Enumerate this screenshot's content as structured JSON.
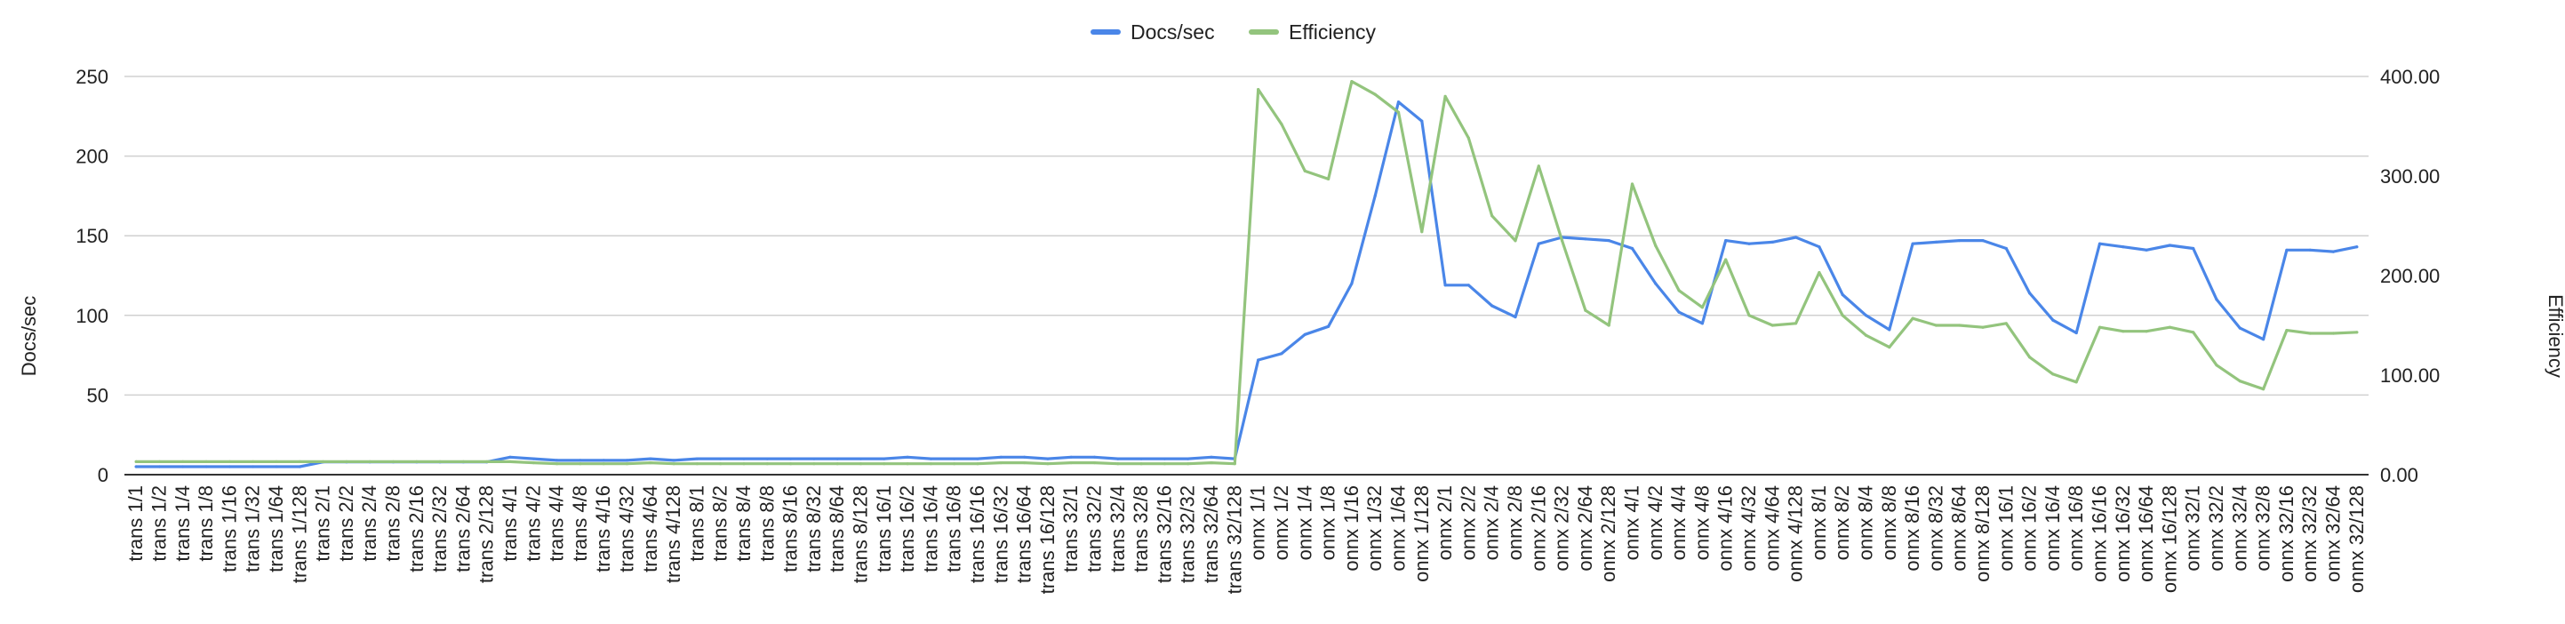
{
  "chart_data": {
    "type": "line",
    "title": "",
    "xlabel": "",
    "ylabel": "Docs/sec",
    "y2label": "Efficiency",
    "ylim": [
      0,
      250
    ],
    "y2lim": [
      0,
      400
    ],
    "yticks": [
      "0",
      "50",
      "100",
      "150",
      "200",
      "250"
    ],
    "y2ticks": [
      "0.00",
      "100.00",
      "200.00",
      "300.00",
      "400.00"
    ],
    "grid": true,
    "legend_position": "top-center",
    "categories": [
      "trans 1/1",
      "trans 1/2",
      "trans 1/4",
      "trans 1/8",
      "trans 1/16",
      "trans 1/32",
      "trans 1/64",
      "trans 1/128",
      "trans 2/1",
      "trans 2/2",
      "trans 2/4",
      "trans 2/8",
      "trans 2/16",
      "trans 2/32",
      "trans 2/64",
      "trans 2/128",
      "trans 4/1",
      "trans 4/2",
      "trans 4/4",
      "trans 4/8",
      "trans 4/16",
      "trans 4/32",
      "trans 4/64",
      "trans 4/128",
      "trans 8/1",
      "trans 8/2",
      "trans 8/4",
      "trans 8/8",
      "trans 8/16",
      "trans 8/32",
      "trans 8/64",
      "trans 8/128",
      "trans 16/1",
      "trans 16/2",
      "trans 16/4",
      "trans 16/8",
      "trans 16/16",
      "trans 16/32",
      "trans 16/64",
      "trans 16/128",
      "trans 32/1",
      "trans 32/2",
      "trans 32/4",
      "trans 32/8",
      "trans 32/16",
      "trans 32/32",
      "trans 32/64",
      "trans 32/128",
      "onnx 1/1",
      "onnx 1/2",
      "onnx 1/4",
      "onnx 1/8",
      "onnx 1/16",
      "onnx 1/32",
      "onnx 1/64",
      "onnx 1/128",
      "onnx 2/1",
      "onnx 2/2",
      "onnx 2/4",
      "onnx 2/8",
      "onnx 2/16",
      "onnx 2/32",
      "onnx 2/64",
      "onnx 2/128",
      "onnx 4/1",
      "onnx 4/2",
      "onnx 4/4",
      "onnx 4/8",
      "onnx 4/16",
      "onnx 4/32",
      "onnx 4/64",
      "onnx 4/128",
      "onnx 8/1",
      "onnx 8/2",
      "onnx 8/4",
      "onnx 8/8",
      "onnx 8/16",
      "onnx 8/32",
      "onnx 8/64",
      "onnx 8/128",
      "onnx 16/1",
      "onnx 16/2",
      "onnx 16/4",
      "onnx 16/8",
      "onnx 16/16",
      "onnx 16/32",
      "onnx 16/64",
      "onnx 16/128",
      "onnx 32/1",
      "onnx 32/2",
      "onnx 32/4",
      "onnx 32/8",
      "onnx 32/16",
      "onnx 32/32",
      "onnx 32/64",
      "onnx 32/128"
    ],
    "series": [
      {
        "name": "Docs/sec",
        "axis": "left",
        "color": "#4a86e8",
        "values": [
          5,
          5,
          5,
          5,
          5,
          5,
          5,
          5,
          8,
          8,
          8,
          8,
          8,
          8,
          8,
          8,
          11,
          10,
          9,
          9,
          9,
          9,
          10,
          9,
          10,
          10,
          10,
          10,
          10,
          10,
          10,
          10,
          10,
          11,
          10,
          10,
          10,
          11,
          11,
          10,
          11,
          11,
          10,
          10,
          10,
          10,
          11,
          10,
          72,
          76,
          88,
          93,
          120,
          175,
          234,
          222,
          119,
          119,
          106,
          99,
          145,
          149,
          148,
          147,
          142,
          120,
          102,
          95,
          147,
          145,
          146,
          149,
          143,
          113,
          100,
          91,
          145,
          146,
          147,
          147,
          142,
          114,
          97,
          89,
          145,
          143,
          141,
          144,
          142,
          110,
          92,
          85,
          141,
          141,
          140,
          143
        ]
      },
      {
        "name": "Efficiency",
        "axis": "right",
        "color": "#93c47d",
        "values": [
          13,
          13,
          13,
          13,
          13,
          13,
          13,
          13,
          13,
          13,
          13,
          13,
          13,
          13,
          13,
          13,
          13,
          12,
          11,
          11,
          11,
          11,
          12,
          11,
          11,
          11,
          11,
          11,
          11,
          11,
          11,
          11,
          11,
          11,
          11,
          11,
          11,
          12,
          12,
          11,
          12,
          12,
          11,
          11,
          11,
          11,
          12,
          11,
          387,
          352,
          305,
          297,
          395,
          382,
          364,
          244,
          380,
          338,
          260,
          235,
          310,
          235,
          165,
          150,
          292,
          230,
          185,
          168,
          216,
          160,
          150,
          152,
          203,
          160,
          140,
          128,
          157,
          150,
          150,
          148,
          152,
          118,
          101,
          93,
          148,
          144,
          144,
          148,
          143,
          110,
          94,
          86,
          145,
          142,
          142,
          143
        ]
      }
    ]
  }
}
